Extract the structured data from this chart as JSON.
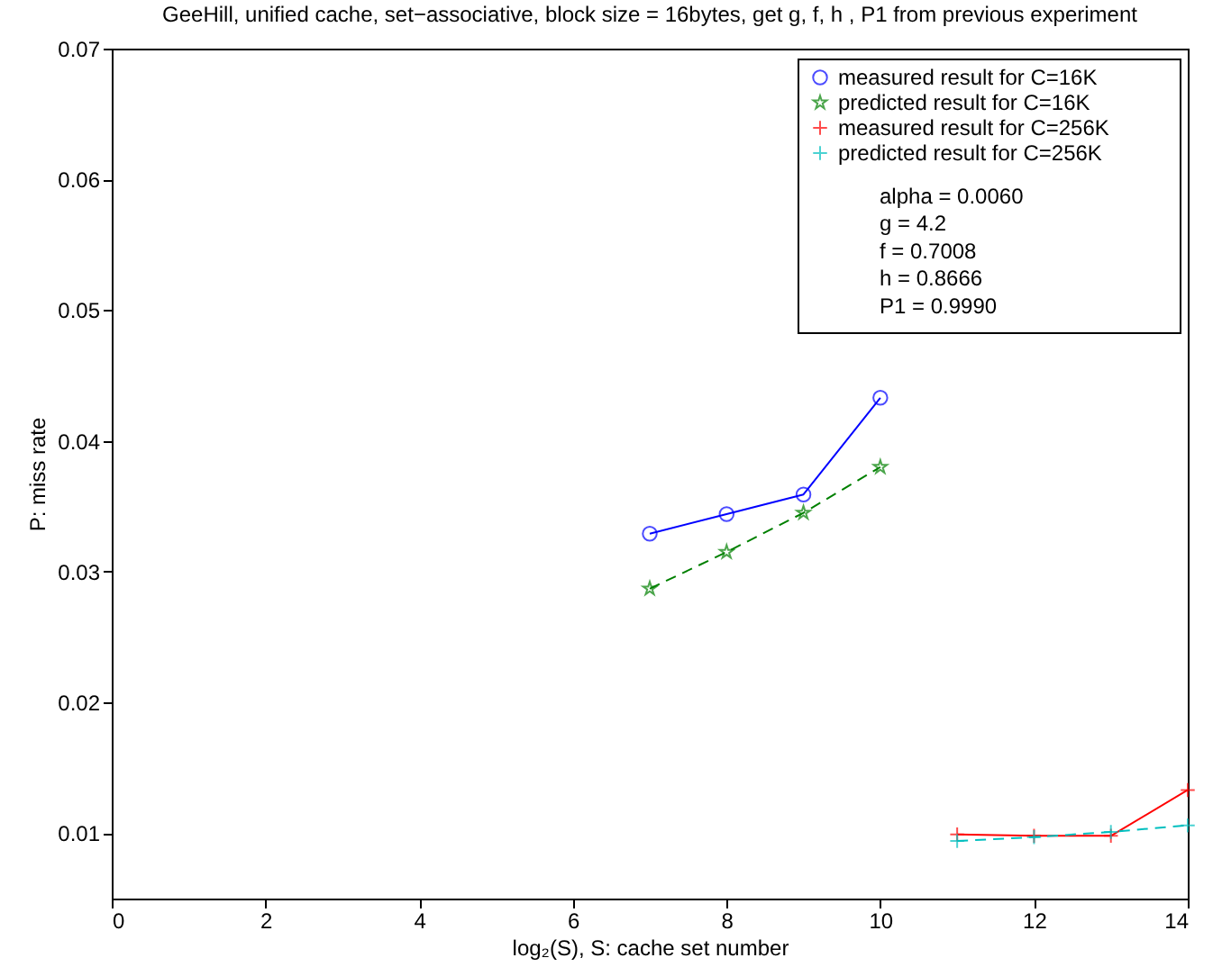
{
  "chart_data": {
    "type": "line",
    "title": "GeeHill, unified cache, set−associative, block size = 16bytes, get g, f, h , P1 from previous experiment",
    "xlabel": "log₂(S), S: cache set number",
    "ylabel": "P: miss rate",
    "xlim": [
      0,
      14
    ],
    "xticks": [
      0,
      2,
      4,
      6,
      8,
      10,
      12,
      14
    ],
    "ylim": [
      0.005,
      0.07
    ],
    "yticks": [
      0.01,
      0.02,
      0.03,
      0.04,
      0.05,
      0.06,
      0.07
    ],
    "grid": false,
    "legend": "top right",
    "annotations": [
      "alpha = 0.0060",
      "g = 4.2",
      "f = 0.7008",
      "h = 0.8666",
      "P1 = 0.9990"
    ],
    "series": [
      {
        "name": "measured result for C=16K",
        "color": "#0000ff",
        "marker": "circle",
        "line_style": "solid",
        "x": [
          7,
          8,
          9,
          10
        ],
        "values": [
          0.0329,
          0.0344,
          0.0359,
          0.0433
        ]
      },
      {
        "name": "predicted result for C=16K",
        "color": "#008000",
        "marker": "star",
        "line_style": "dashed",
        "x": [
          7,
          8,
          9,
          10
        ],
        "values": [
          0.0287,
          0.0315,
          0.0345,
          0.038
        ]
      },
      {
        "name": "measured result for C=256K",
        "color": "#ff0000",
        "marker": "cross",
        "line_style": "solid",
        "x": [
          11,
          12,
          13,
          14
        ],
        "values": [
          0.0099,
          0.0098,
          0.0098,
          0.0133
        ]
      },
      {
        "name": "predicted result for C=256K",
        "color": "#00bfbf",
        "marker": "cross",
        "line_style": "dashed",
        "x": [
          11,
          12,
          13,
          14
        ],
        "values": [
          0.0094,
          0.0097,
          0.0101,
          0.0106
        ]
      }
    ]
  }
}
